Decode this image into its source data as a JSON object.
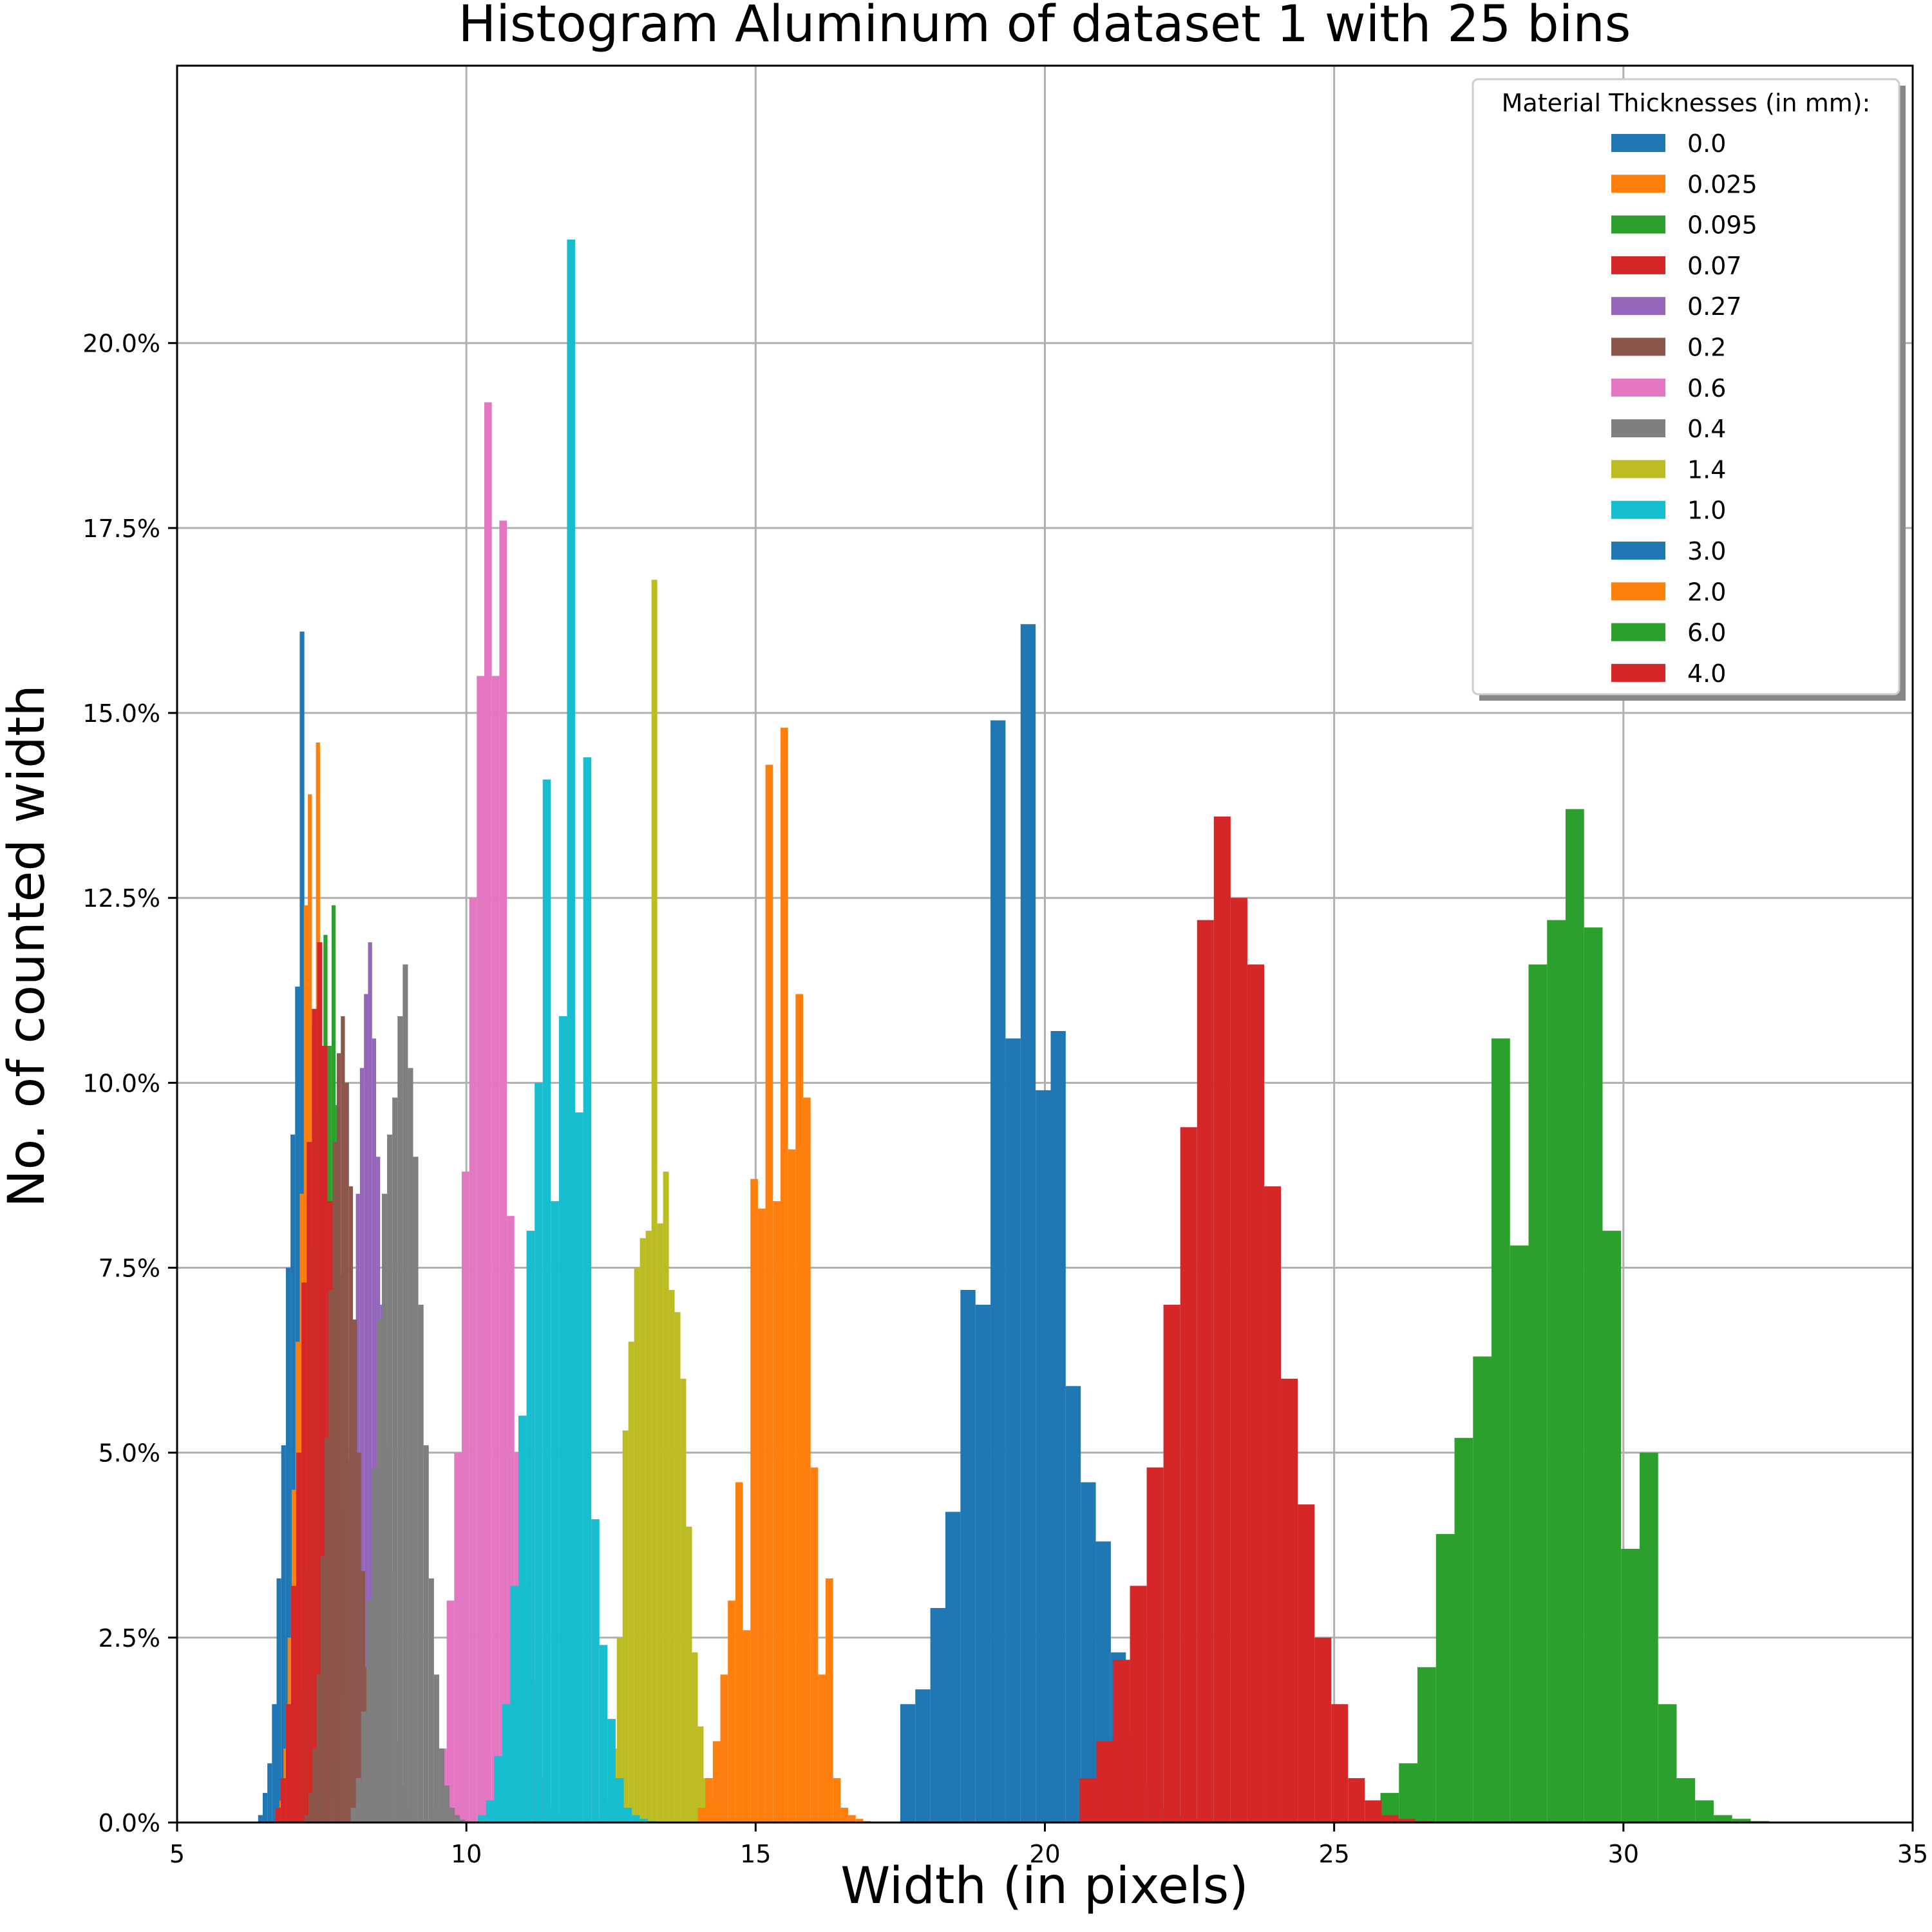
{
  "chart_data": {
    "type": "histogram",
    "title": "Histogram Aluminum of dataset 1 with 25 bins",
    "xlabel": "Width (in pixels)",
    "ylabel": "No. of counted width",
    "xlim": [
      5,
      35
    ],
    "ylim": [
      0,
      0.2375
    ],
    "grid": true,
    "x_ticks": [
      5,
      10,
      15,
      20,
      25,
      30,
      35
    ],
    "y_ticks": [
      0.0,
      0.025,
      0.05,
      0.075,
      0.1,
      0.125,
      0.15,
      0.175,
      0.2
    ],
    "y_tick_labels": [
      "0.0%",
      "2.5%",
      "5.0%",
      "7.5%",
      "10.0%",
      "12.5%",
      "15.0%",
      "17.5%",
      "20.0%"
    ],
    "legend": {
      "title": "Material Thicknesses (in mm):",
      "position": "upper-right"
    },
    "series": [
      {
        "name": "0.0",
        "color": "#1f77b4",
        "bin_start": 6.4,
        "bin_width": 0.08,
        "percent": [
          0.1,
          0.4,
          0.8,
          1.6,
          3.3,
          5.1,
          7.5,
          9.3,
          11.3,
          16.1,
          11.0,
          9.0,
          5.8,
          3.5,
          2.0,
          1.0,
          0.5,
          0.2,
          0.1,
          0.05,
          0.02,
          0,
          0,
          0,
          0.01
        ]
      },
      {
        "name": "0.025",
        "color": "#ff7f0e",
        "bin_start": 6.7,
        "bin_width": 0.07,
        "percent": [
          0.1,
          0.3,
          1.0,
          2.5,
          4.5,
          6.5,
          8.5,
          12.4,
          13.9,
          10.8,
          14.6,
          9.4,
          6.8,
          4.6,
          2.8,
          1.6,
          0.9,
          0.4,
          0.2,
          0.1,
          0.05,
          0.02,
          0.01,
          0,
          0.01
        ]
      },
      {
        "name": "0.095",
        "color": "#2ca02c",
        "bin_start": 6.9,
        "bin_width": 0.07,
        "percent": [
          0.1,
          0.3,
          0.8,
          1.8,
          3.4,
          5.4,
          7.8,
          9.6,
          10.5,
          12.0,
          10.5,
          12.4,
          9.7,
          7.4,
          5.2,
          3.4,
          2.0,
          1.1,
          0.5,
          0.2,
          0.1,
          0.05,
          0.02,
          0.01,
          0.01
        ]
      },
      {
        "name": "0.07",
        "color": "#d62728",
        "bin_start": 6.7,
        "bin_width": 0.09,
        "percent": [
          0.2,
          0.6,
          1.6,
          3.2,
          5.0,
          7.3,
          9.2,
          11.0,
          11.9,
          10.5,
          8.4,
          6.2,
          4.2,
          2.7,
          1.6,
          0.8,
          0.4,
          0.2,
          0.1,
          0.05,
          0.02,
          0.01,
          0,
          0,
          0.01
        ]
      },
      {
        "name": "0.27",
        "color": "#9467bd",
        "bin_start": 7.6,
        "bin_width": 0.07,
        "percent": [
          0.1,
          0.3,
          0.8,
          1.7,
          3.1,
          4.9,
          6.8,
          8.5,
          10.2,
          11.2,
          11.9,
          10.6,
          9.0,
          7.0,
          5.1,
          3.4,
          2.1,
          1.1,
          0.5,
          0.2,
          0.1,
          0.04,
          0.02,
          0.01,
          0.01
        ]
      },
      {
        "name": "0.2",
        "color": "#8c564b",
        "bin_start": 7.2,
        "bin_width": 0.07,
        "percent": [
          0.1,
          0.4,
          1.0,
          2.0,
          3.6,
          5.2,
          7.2,
          9.2,
          10.4,
          10.9,
          10.0,
          8.6,
          6.8,
          5.0,
          3.4,
          2.1,
          1.2,
          0.6,
          0.3,
          0.1,
          0.05,
          0.02,
          0.01,
          0,
          0.01
        ]
      },
      {
        "name": "0.6",
        "color": "#e377c2",
        "bin_start": 9.4,
        "bin_width": 0.13,
        "percent": [
          0.2,
          1.0,
          3.0,
          5.0,
          8.8,
          12.5,
          15.5,
          19.2,
          15.5,
          17.6,
          8.2,
          5.0,
          3.2,
          1.9,
          0.6,
          0.2,
          0.1,
          0.05,
          0.02,
          0.01,
          0,
          0,
          0,
          0,
          0.01
        ]
      },
      {
        "name": "0.4",
        "color": "#7f7f7f",
        "bin_start": 8.0,
        "bin_width": 0.09,
        "percent": [
          0.2,
          0.6,
          1.5,
          3.0,
          4.8,
          6.8,
          8.5,
          9.3,
          9.8,
          10.9,
          11.6,
          10.2,
          9.0,
          7.0,
          5.1,
          3.3,
          2.0,
          1.0,
          0.5,
          0.2,
          0.1,
          0.04,
          0.02,
          0.01,
          0.01
        ]
      },
      {
        "name": "1.4",
        "color": "#bcbd22",
        "bin_start": 12.3,
        "bin_width": 0.1,
        "percent": [
          0.1,
          0.3,
          1.0,
          2.5,
          5.3,
          6.5,
          7.5,
          7.9,
          8.0,
          16.8,
          8.1,
          8.8,
          7.2,
          6.9,
          6.0,
          4.0,
          2.3,
          1.3,
          0.6,
          0.3,
          0.1,
          0.05,
          0.02,
          0.01,
          0.01
        ]
      },
      {
        "name": "1.0",
        "color": "#17becf",
        "bin_start": 10.2,
        "bin_width": 0.14,
        "percent": [
          0.1,
          0.3,
          0.9,
          1.6,
          3.2,
          5.5,
          8.0,
          10.0,
          14.1,
          8.4,
          10.9,
          21.4,
          9.6,
          14.4,
          4.1,
          2.4,
          1.4,
          0.6,
          0.2,
          0.1,
          0.05,
          0.02,
          0.01,
          0,
          0.01
        ]
      },
      {
        "name": "3.0",
        "color": "#1f77b4",
        "bin_start": 17.5,
        "bin_width": 0.26,
        "percent": [
          1.6,
          1.8,
          2.9,
          4.2,
          7.2,
          7.0,
          14.9,
          10.6,
          16.2,
          9.9,
          10.7,
          5.9,
          4.6,
          3.8,
          2.3,
          1.2,
          0.5,
          0.2,
          0.1,
          0.05,
          0.02,
          0.01,
          0,
          0,
          0.01
        ]
      },
      {
        "name": "2.0",
        "color": "#ff7f0e",
        "bin_start": 14.0,
        "bin_width": 0.13,
        "percent": [
          0.2,
          0.6,
          1.1,
          2.0,
          3.0,
          4.6,
          2.6,
          8.7,
          8.3,
          14.3,
          8.4,
          14.8,
          9.1,
          11.2,
          9.8,
          4.8,
          2.0,
          3.3,
          0.6,
          0.2,
          0.1,
          0.05,
          0.02,
          0.01,
          0.01
        ]
      },
      {
        "name": "6.0",
        "color": "#2ca02c",
        "bin_start": 25.8,
        "bin_width": 0.32,
        "percent": [
          0.4,
          0.8,
          2.1,
          3.9,
          5.2,
          6.3,
          10.6,
          7.8,
          11.6,
          12.2,
          13.7,
          12.1,
          8.0,
          3.7,
          5.0,
          1.6,
          0.6,
          0.3,
          0.1,
          0.05,
          0.02,
          0.01,
          0,
          0,
          0.01
        ]
      },
      {
        "name": "4.0",
        "color": "#d62728",
        "bin_start": 20.6,
        "bin_width": 0.29,
        "percent": [
          0.6,
          1.1,
          2.2,
          3.2,
          4.8,
          7.0,
          9.4,
          12.2,
          13.6,
          12.5,
          11.6,
          8.6,
          6.0,
          4.3,
          2.5,
          1.6,
          0.6,
          0.3,
          0.1,
          0.05,
          0.02,
          0.01,
          0,
          0,
          0.01
        ]
      }
    ]
  }
}
